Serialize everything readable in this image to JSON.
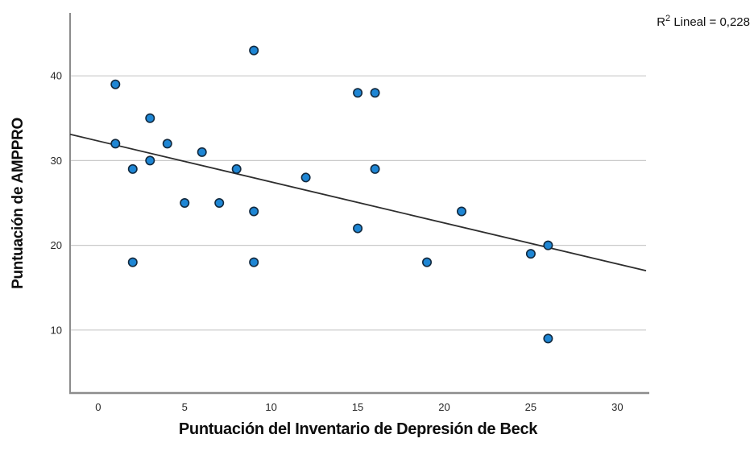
{
  "figure": {
    "background": "#ffffff"
  },
  "annotation": {
    "r2_base": "R",
    "r2_sup": "2",
    "r2_rest": " Lineal = 0,228",
    "full_text": "R² Lineal = 0,228"
  },
  "chart_data": {
    "type": "scatter",
    "title": "",
    "xlabel": "Puntuación del Inventario de Depresión de Beck",
    "ylabel": "Puntuación de AMPPRO",
    "x_ticks": [
      0,
      5,
      10,
      15,
      20,
      25,
      30
    ],
    "y_ticks": [
      10,
      20,
      30,
      40
    ],
    "xlim": [
      -1.62,
      31.66
    ],
    "ylim": [
      2.57,
      47.43
    ],
    "grid": "horizontal-only",
    "legend": "none",
    "points": [
      [
        1,
        39
      ],
      [
        1,
        32
      ],
      [
        2,
        29
      ],
      [
        2,
        18
      ],
      [
        3,
        35
      ],
      [
        3,
        30
      ],
      [
        4,
        32
      ],
      [
        5,
        25
      ],
      [
        6,
        31
      ],
      [
        7,
        25
      ],
      [
        8,
        29
      ],
      [
        9,
        43
      ],
      [
        9,
        24
      ],
      [
        9,
        18
      ],
      [
        12,
        28
      ],
      [
        15,
        38
      ],
      [
        15,
        22
      ],
      [
        16,
        38
      ],
      [
        16,
        29
      ],
      [
        19,
        18
      ],
      [
        21,
        24
      ],
      [
        25,
        19
      ],
      [
        26,
        20
      ],
      [
        26,
        9
      ]
    ],
    "fit_line": {
      "x1": -1.62,
      "y1": 33.1,
      "x2": 31.66,
      "y2": 17.0,
      "r_squared": 0.228,
      "r_squared_text": "0,228",
      "label": "R² Lineal = 0,228"
    },
    "colors": {
      "marker_fill": "#1e86d4",
      "marker_stroke": "#12293e",
      "fit_line": "#2e2e2e",
      "grid": "#c9c9c9",
      "axis": "#8c8c8c",
      "tick_text": "#262626",
      "title_text": "#0d0d0d"
    }
  }
}
